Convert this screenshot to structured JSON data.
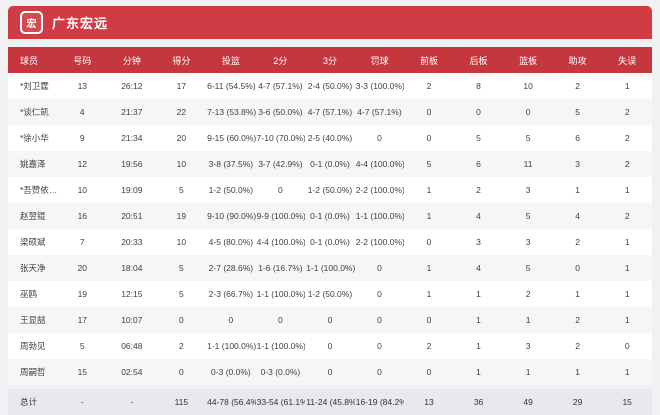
{
  "team": {
    "name": "广东宏远",
    "logo_glyph": "宏"
  },
  "colors": {
    "banner_red": "#cf3c43",
    "header_red": "#c6363e",
    "row_alt": "#f6f6f8",
    "totals_bg": "#e9e9ed",
    "page_bg": "#eff1f3"
  },
  "table": {
    "columns": [
      "球员",
      "号码",
      "分钟",
      "得分",
      "投篮",
      "2分",
      "3分",
      "罚球",
      "前板",
      "后板",
      "篮板",
      "助攻",
      "失误"
    ],
    "rows": [
      [
        "*刘卫霆",
        "13",
        "26:12",
        "17",
        "6-11 (54.5%)",
        "4-7 (57.1%)",
        "2-4 (50.0%)",
        "3-3 (100.0%)",
        "2",
        "8",
        "10",
        "2",
        "1"
      ],
      [
        "*谈仁凯",
        "4",
        "21:37",
        "22",
        "7-13 (53.8%)",
        "3-6 (50.0%)",
        "4-7 (57.1%)",
        "4-7 (57.1%)",
        "0",
        "0",
        "0",
        "5",
        "2"
      ],
      [
        "*徐小华",
        "9",
        "21:34",
        "20",
        "9-15 (60.0%)",
        "7-10 (70.0%)",
        "2-5 (40.0%)",
        "0",
        "0",
        "5",
        "5",
        "6",
        "2"
      ],
      [
        "姚嘉泽",
        "12",
        "19:56",
        "10",
        "3-8 (37.5%)",
        "3-7 (42.9%)",
        "0-1 (0.0%)",
        "4-4 (100.0%)",
        "5",
        "6",
        "11",
        "3",
        "2"
      ],
      [
        "*吾赞依…",
        "10",
        "19:09",
        "5",
        "1-2 (50.0%)",
        "0",
        "1-2 (50.0%)",
        "2-2 (100.0%)",
        "1",
        "2",
        "3",
        "1",
        "1"
      ],
      [
        "赵翌锟",
        "16",
        "20:51",
        "19",
        "9-10 (90.0%)",
        "9-9 (100.0%)",
        "0-1 (0.0%)",
        "1-1 (100.0%)",
        "1",
        "4",
        "5",
        "4",
        "2"
      ],
      [
        "梁硕斌",
        "7",
        "20:33",
        "10",
        "4-5 (80.0%)",
        "4-4 (100.0%)",
        "0-1 (0.0%)",
        "2-2 (100.0%)",
        "0",
        "3",
        "3",
        "2",
        "1"
      ],
      [
        "张天净",
        "20",
        "18:04",
        "5",
        "2-7 (28.6%)",
        "1-6 (16.7%)",
        "1-1 (100.0%)",
        "0",
        "1",
        "4",
        "5",
        "0",
        "1"
      ],
      [
        "巫鸥",
        "19",
        "12:15",
        "5",
        "2-3 (66.7%)",
        "1-1 (100.0%)",
        "1-2 (50.0%)",
        "0",
        "1",
        "1",
        "2",
        "1",
        "1"
      ],
      [
        "王显喆",
        "17",
        "10:07",
        "0",
        "0",
        "0",
        "0",
        "0",
        "0",
        "1",
        "1",
        "2",
        "1"
      ],
      [
        "周勃见",
        "5",
        "06:48",
        "2",
        "1-1 (100.0%)",
        "1-1 (100.0%)",
        "0",
        "0",
        "2",
        "1",
        "3",
        "2",
        "0"
      ],
      [
        "周嗣哲",
        "15",
        "02:54",
        "0",
        "0-3 (0.0%)",
        "0-3 (0.0%)",
        "0",
        "0",
        "0",
        "1",
        "1",
        "1",
        "1"
      ]
    ],
    "totals": [
      "总计",
      "-",
      "-",
      "115",
      "44-78 (56.4%)",
      "33-54 (61.1%)",
      "11-24 (45.8%)",
      "16-19 (84.2%)",
      "13",
      "36",
      "49",
      "29",
      "15"
    ]
  }
}
